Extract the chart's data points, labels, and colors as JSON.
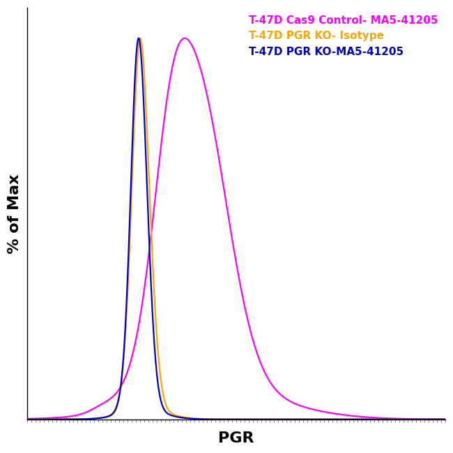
{
  "ylabel": "% of Max",
  "xlabel": "PGR",
  "legend_entries": [
    {
      "label": "T-47D Cas9 Control- MA5-41205",
      "color": "#FF00FF"
    },
    {
      "label": "T-47D PGR KO- Isotype",
      "color": "#FFA500"
    },
    {
      "label": "T-47D PGR KO-MA5-41205",
      "color": "#0000CC"
    }
  ],
  "background_color": "#FFFFFF",
  "xlim": [
    0,
    1000
  ],
  "ylim": [
    0,
    1.08
  ],
  "xlabel_fontsize": 16,
  "ylabel_fontsize": 16,
  "legend_fontsize": 11,
  "line_width": 1.6
}
